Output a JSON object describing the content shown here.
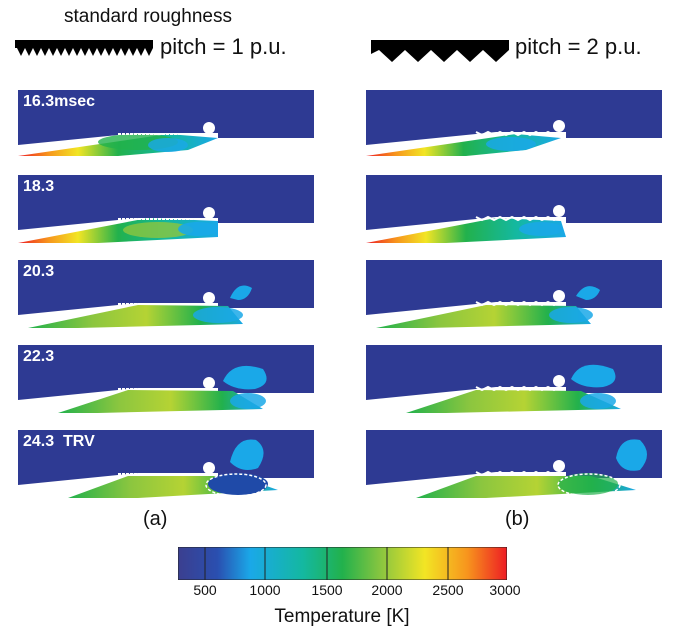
{
  "header": {
    "left_title": "standard roughness",
    "left_pitch": "pitch = 1 p.u.",
    "right_pitch": "pitch = 2 p.u."
  },
  "frames": {
    "t1": "16.3msec",
    "t2": "18.3",
    "t3": "20.3",
    "t4": "22.3",
    "t5": "24.3",
    "trv": "TRV"
  },
  "subfigures": {
    "a": "(a)",
    "b": "(b)"
  },
  "colorbar": {
    "title": "Temperature [K]",
    "ticks": [
      "500",
      "1000",
      "1500",
      "2000",
      "2500",
      "3000"
    ],
    "colors": [
      "#3b3f8f",
      "#2a4fb0",
      "#1aa8e8",
      "#14b8a0",
      "#22b14c",
      "#8cc63f",
      "#f2e524",
      "#f7941d",
      "#ed1c24"
    ]
  },
  "colors": {
    "background_field": "#2e3a93"
  }
}
